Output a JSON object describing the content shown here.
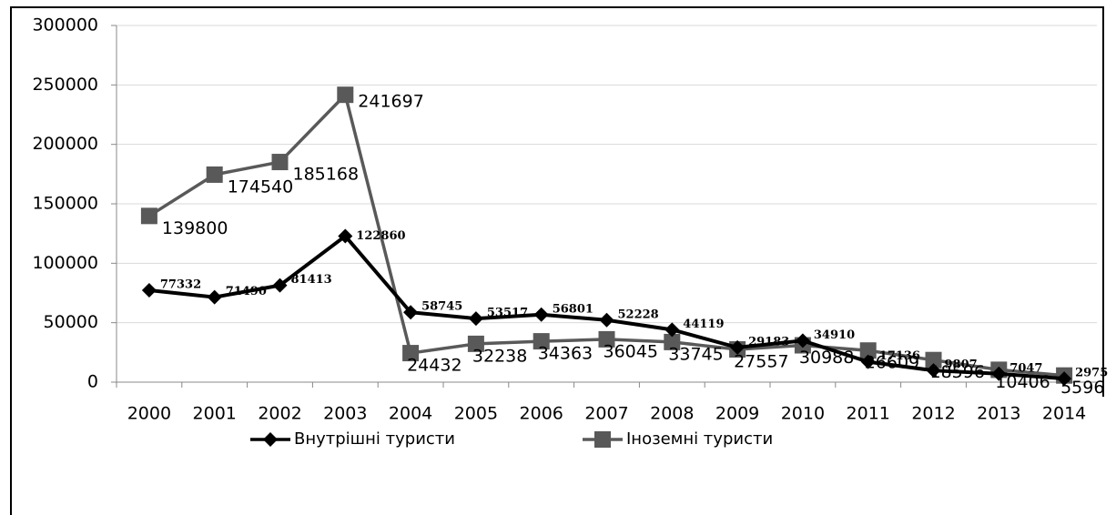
{
  "chart_data": {
    "type": "line",
    "categories": [
      "2000",
      "2001",
      "2002",
      "2003",
      "2004",
      "2005",
      "2006",
      "2007",
      "2008",
      "2009",
      "2010",
      "2011",
      "2012",
      "2013",
      "2014"
    ],
    "series": [
      {
        "name": "Внутрішні туристи",
        "color": "#000000",
        "marker": "diamond",
        "values": [
          77332,
          71490,
          81413,
          122860,
          58745,
          53517,
          56801,
          52228,
          44119,
          29183,
          34910,
          17136,
          9807,
          7047,
          2975
        ]
      },
      {
        "name": "Іноземні туристи",
        "color": "#595959",
        "marker": "square",
        "values": [
          139800,
          174540,
          185168,
          241697,
          24432,
          32238,
          34363,
          36045,
          33745,
          27557,
          30988,
          26609,
          18596,
          10406,
          5596
        ]
      }
    ],
    "ylim": [
      0,
      300000
    ],
    "yticks": [
      0,
      50000,
      100000,
      150000,
      200000,
      250000,
      300000
    ],
    "grid": true,
    "legend": "bottom"
  }
}
